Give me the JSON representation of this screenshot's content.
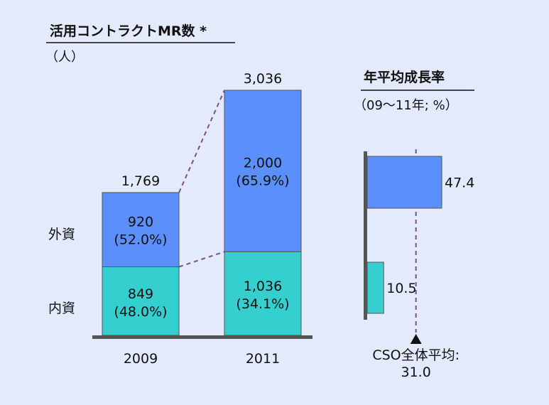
{
  "colors": {
    "background": "#e2eafb",
    "foreign": "#5b8ffb",
    "domestic": "#35cfcf",
    "axis": "#555555",
    "connector": "#7a4f96"
  },
  "chart_data": [
    {
      "type": "bar",
      "stacked": true,
      "title": "活用コントラクトMR数 *",
      "unit_label": "（人）",
      "categories": [
        "2009",
        "2011"
      ],
      "totals": [
        "1,769",
        "3,036"
      ],
      "series": [
        {
          "name": "内資",
          "values": [
            849,
            1036
          ],
          "value_labels": [
            "849",
            "1,036"
          ],
          "share_labels": [
            "(48.0%)",
            "(34.1%)"
          ]
        },
        {
          "name": "外資",
          "values": [
            920,
            2000
          ],
          "value_labels": [
            "920",
            "2,000"
          ],
          "share_labels": [
            "(52.0%)",
            "(65.9%)"
          ]
        }
      ]
    },
    {
      "type": "bar",
      "orientation": "horizontal",
      "title": "年平均成長率",
      "unit_label": "（09～11年; %）",
      "bars": [
        {
          "series": "外資",
          "value": 47.4,
          "label": "47.4"
        },
        {
          "series": "内資",
          "value": 10.5,
          "label": "10.5"
        }
      ],
      "reference": {
        "label_line1": "CSO全体平均:",
        "label_line2": "31.0",
        "value": 31.0
      }
    }
  ]
}
